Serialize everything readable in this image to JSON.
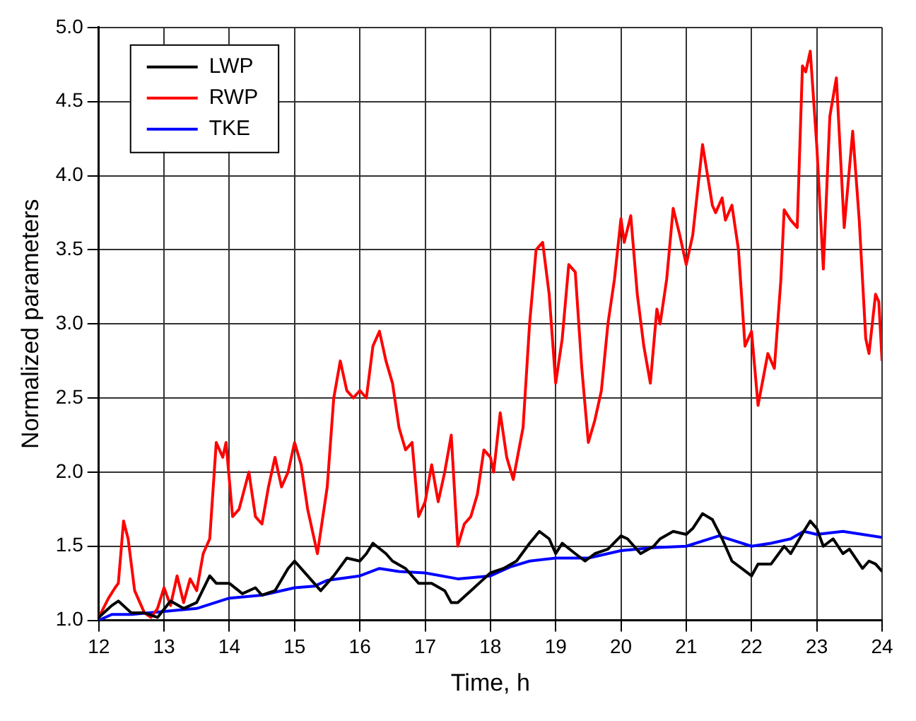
{
  "chart_data": {
    "type": "line",
    "xlabel": "Time, h",
    "ylabel": "Normalized parameters",
    "xlim": [
      12,
      24
    ],
    "xticks": [
      12,
      13,
      14,
      15,
      16,
      17,
      18,
      19,
      20,
      21,
      22,
      23,
      24
    ],
    "ylim": [
      1.0,
      5.0
    ],
    "yticks": [
      {
        "value": 1.0,
        "label": "1.0"
      },
      {
        "value": 1.5,
        "label": "1.5"
      },
      {
        "value": 2.0,
        "label": "2.0"
      },
      {
        "value": 2.5,
        "label": "2.5"
      },
      {
        "value": 3.0,
        "label": "3.0"
      },
      {
        "value": 3.5,
        "label": "3.5"
      },
      {
        "value": 4.0,
        "label": "4.0"
      },
      {
        "value": 4.5,
        "label": "4.5"
      },
      {
        "value": 5.0,
        "label": "5.0"
      }
    ],
    "grid": true,
    "legend": "top left",
    "marker": "none",
    "line_style": "solid",
    "series": [
      {
        "name": "LWP",
        "color": "#000000",
        "x": [
          12.0,
          12.2,
          12.3,
          12.5,
          12.7,
          12.9,
          13.1,
          13.3,
          13.5,
          13.7,
          13.8,
          14.0,
          14.2,
          14.4,
          14.5,
          14.7,
          14.9,
          15.0,
          15.2,
          15.4,
          15.6,
          15.8,
          16.0,
          16.1,
          16.2,
          16.4,
          16.5,
          16.7,
          16.9,
          17.1,
          17.3,
          17.4,
          17.5,
          17.7,
          17.9,
          18.0,
          18.2,
          18.4,
          18.6,
          18.75,
          18.9,
          19.0,
          19.1,
          19.3,
          19.45,
          19.6,
          19.8,
          20.0,
          20.1,
          20.3,
          20.5,
          20.6,
          20.8,
          21.0,
          21.1,
          21.25,
          21.4,
          21.55,
          21.7,
          21.85,
          22.0,
          22.1,
          22.3,
          22.5,
          22.6,
          22.8,
          22.9,
          23.0,
          23.1,
          23.25,
          23.4,
          23.5,
          23.7,
          23.8,
          23.9,
          24.0
        ],
        "values": [
          1.02,
          1.1,
          1.13,
          1.05,
          1.05,
          1.02,
          1.13,
          1.08,
          1.12,
          1.3,
          1.25,
          1.25,
          1.18,
          1.22,
          1.17,
          1.2,
          1.35,
          1.4,
          1.3,
          1.2,
          1.3,
          1.42,
          1.4,
          1.45,
          1.52,
          1.45,
          1.4,
          1.35,
          1.25,
          1.25,
          1.2,
          1.12,
          1.12,
          1.2,
          1.28,
          1.32,
          1.35,
          1.4,
          1.52,
          1.6,
          1.55,
          1.45,
          1.52,
          1.45,
          1.4,
          1.45,
          1.48,
          1.57,
          1.55,
          1.45,
          1.5,
          1.55,
          1.6,
          1.58,
          1.62,
          1.72,
          1.68,
          1.55,
          1.4,
          1.35,
          1.3,
          1.38,
          1.38,
          1.5,
          1.45,
          1.6,
          1.67,
          1.62,
          1.5,
          1.55,
          1.45,
          1.48,
          1.35,
          1.4,
          1.38,
          1.33
        ]
      },
      {
        "name": "RWP",
        "color": "#ff0000",
        "x": [
          12.0,
          12.15,
          12.25,
          12.3,
          12.38,
          12.45,
          12.55,
          12.7,
          12.8,
          12.9,
          13.0,
          13.1,
          13.2,
          13.3,
          13.4,
          13.5,
          13.6,
          13.7,
          13.8,
          13.9,
          13.95,
          14.05,
          14.15,
          14.3,
          14.4,
          14.5,
          14.6,
          14.7,
          14.8,
          14.9,
          15.0,
          15.1,
          15.2,
          15.35,
          15.5,
          15.6,
          15.7,
          15.8,
          15.9,
          16.0,
          16.1,
          16.2,
          16.3,
          16.4,
          16.5,
          16.6,
          16.7,
          16.8,
          16.9,
          17.0,
          17.1,
          17.2,
          17.3,
          17.4,
          17.5,
          17.6,
          17.7,
          17.8,
          17.9,
          18.0,
          18.05,
          18.15,
          18.25,
          18.35,
          18.5,
          18.6,
          18.7,
          18.8,
          18.9,
          19.0,
          19.1,
          19.2,
          19.3,
          19.4,
          19.5,
          19.6,
          19.7,
          19.8,
          19.9,
          20.0,
          20.05,
          20.15,
          20.25,
          20.35,
          20.45,
          20.55,
          20.6,
          20.7,
          20.8,
          20.9,
          21.0,
          21.1,
          21.25,
          21.4,
          21.45,
          21.55,
          21.6,
          21.7,
          21.8,
          21.9,
          22.0,
          22.1,
          22.25,
          22.35,
          22.45,
          22.5,
          22.6,
          22.7,
          22.78,
          22.83,
          22.9,
          23.0,
          23.1,
          23.2,
          23.3,
          23.42,
          23.55,
          23.65,
          23.75,
          23.8,
          23.9,
          23.95,
          24.0
        ],
        "values": [
          1.02,
          1.15,
          1.22,
          1.25,
          1.67,
          1.55,
          1.2,
          1.05,
          1.02,
          1.08,
          1.22,
          1.1,
          1.3,
          1.12,
          1.28,
          1.2,
          1.45,
          1.55,
          2.2,
          2.1,
          2.2,
          1.7,
          1.75,
          2.0,
          1.7,
          1.65,
          1.9,
          2.1,
          1.9,
          2.0,
          2.2,
          2.05,
          1.75,
          1.45,
          1.9,
          2.5,
          2.75,
          2.55,
          2.5,
          2.55,
          2.5,
          2.85,
          2.95,
          2.75,
          2.6,
          2.3,
          2.15,
          2.2,
          1.7,
          1.8,
          2.05,
          1.8,
          2.0,
          2.25,
          1.5,
          1.65,
          1.7,
          1.85,
          2.15,
          2.1,
          2.0,
          2.4,
          2.1,
          1.95,
          2.3,
          3.0,
          3.5,
          3.55,
          3.2,
          2.6,
          2.9,
          3.4,
          3.35,
          2.7,
          2.2,
          2.35,
          2.55,
          3.0,
          3.3,
          3.71,
          3.55,
          3.73,
          3.2,
          2.85,
          2.6,
          3.1,
          3.0,
          3.3,
          3.78,
          3.6,
          3.4,
          3.6,
          4.21,
          3.8,
          3.75,
          3.85,
          3.7,
          3.8,
          3.5,
          2.85,
          2.95,
          2.45,
          2.8,
          2.7,
          3.3,
          3.77,
          3.7,
          3.65,
          4.74,
          4.7,
          4.84,
          4.2,
          3.37,
          4.4,
          4.66,
          3.65,
          4.3,
          3.7,
          2.9,
          2.8,
          3.2,
          3.15,
          2.75
        ]
      },
      {
        "name": "TKE",
        "color": "#0000ff",
        "x": [
          12.0,
          12.2,
          12.5,
          13.0,
          13.5,
          14.0,
          14.5,
          15.0,
          15.3,
          15.5,
          16.0,
          16.3,
          16.6,
          17.0,
          17.5,
          18.0,
          18.3,
          18.6,
          19.0,
          19.5,
          20.0,
          20.5,
          21.0,
          21.5,
          22.0,
          22.3,
          22.6,
          22.8,
          23.0,
          23.4,
          23.7,
          24.0
        ],
        "values": [
          1.0,
          1.04,
          1.04,
          1.06,
          1.08,
          1.15,
          1.17,
          1.22,
          1.23,
          1.27,
          1.3,
          1.35,
          1.33,
          1.32,
          1.28,
          1.3,
          1.36,
          1.4,
          1.42,
          1.42,
          1.47,
          1.49,
          1.5,
          1.57,
          1.5,
          1.52,
          1.55,
          1.6,
          1.58,
          1.6,
          1.58,
          1.56
        ]
      }
    ]
  }
}
